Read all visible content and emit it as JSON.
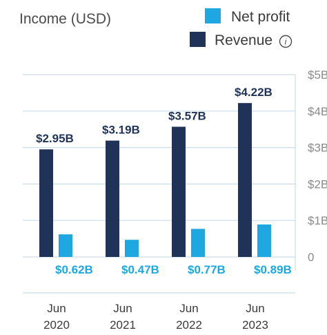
{
  "header": {
    "title": "Income (USD)",
    "info_icon": "info-icon"
  },
  "legend": [
    {
      "label": "Net profit",
      "color": "#1ea7e0"
    },
    {
      "label": "Revenue",
      "color": "#1f3358"
    }
  ],
  "colors": {
    "revenue": "#1f3358",
    "net_profit": "#1ea7e0",
    "grid": "#c9dcec"
  },
  "chart_data": {
    "type": "bar",
    "title": "Income (USD)",
    "categories": [
      "Jun 2020",
      "Jun 2021",
      "Jun 2022",
      "Jun 2023"
    ],
    "category_lines": [
      [
        "Jun",
        "2020"
      ],
      [
        "Jun",
        "2021"
      ],
      [
        "Jun",
        "2022"
      ],
      [
        "Jun",
        "2023"
      ]
    ],
    "series": [
      {
        "name": "Revenue",
        "values": [
          2.95,
          3.19,
          3.57,
          4.22
        ],
        "labels": [
          "$2.95B",
          "$3.19B",
          "$3.57B",
          "$4.22B"
        ]
      },
      {
        "name": "Net profit",
        "values": [
          0.62,
          0.47,
          0.77,
          0.89
        ],
        "labels": [
          "$0.62B",
          "$0.47B",
          "$0.77B",
          "$0.89B"
        ]
      }
    ],
    "y_ticks": [
      0,
      1,
      2,
      3,
      4,
      5
    ],
    "y_tick_labels": [
      "0",
      "$1B",
      "$2B",
      "$3B",
      "$4B",
      "$5B"
    ],
    "ylim": [
      0,
      5
    ],
    "y_axis_side": "right",
    "grid": true,
    "legend_position": "top-right"
  }
}
